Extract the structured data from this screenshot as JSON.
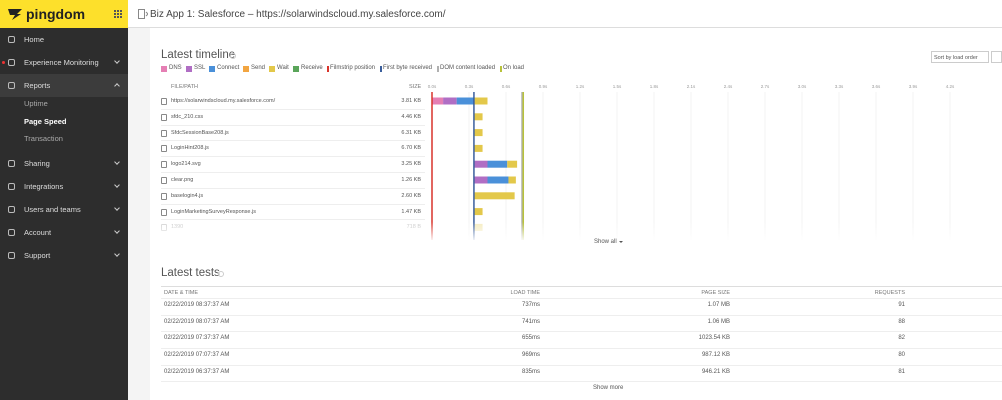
{
  "sidebar": {
    "brand": "pingdom",
    "nav": [
      {
        "label": "Home",
        "chevron": false
      },
      {
        "label": "Experience Monitoring",
        "chevron": true
      },
      {
        "label": "Reports",
        "chevron": true,
        "open": true,
        "children": [
          "Uptime",
          "Page Speed",
          "Transaction"
        ]
      },
      {
        "label": "Sharing",
        "chevron": true
      },
      {
        "label": "Integrations",
        "chevron": true
      },
      {
        "label": "Users and teams",
        "chevron": true
      },
      {
        "label": "Account",
        "chevron": true
      },
      {
        "label": "Support",
        "chevron": true
      }
    ]
  },
  "header": {
    "title": "Biz App 1: Salesforce – https://solarwindscloud.my.salesforce.com/"
  },
  "timeline": {
    "title": "Latest timeline",
    "sort": "Sort by load order",
    "legend": [
      {
        "label": "DNS",
        "color": "#e57fb4"
      },
      {
        "label": "SSL",
        "color": "#b06ec4"
      },
      {
        "label": "Connect",
        "color": "#4a90d9"
      },
      {
        "label": "Send",
        "color": "#f2a541"
      },
      {
        "label": "Wait",
        "color": "#e3c84a"
      },
      {
        "label": "Receive",
        "color": "#5aa55a"
      }
    ],
    "markers": [
      {
        "label": "Filmstrip position",
        "color": "#d9342b",
        "value": 0
      },
      {
        "label": "First byte received",
        "color": "#3a5e9c",
        "value": 0.34
      },
      {
        "label": "DOM content loaded",
        "color": "#b0b0b0",
        "value": 0.73
      },
      {
        "label": "On load",
        "color": "#b8c23a",
        "value": 0.74
      }
    ],
    "columns": [
      "FILE/PATH",
      "SIZE"
    ],
    "xlim": [
      0,
      4.2
    ],
    "ticks": [
      {
        "value": 0,
        "label": "0.0s"
      },
      {
        "value": 0.3,
        "label": "0.3s"
      },
      {
        "value": 0.6,
        "label": "0.6s"
      },
      {
        "value": 0.9,
        "label": "0.9s"
      },
      {
        "value": 1.2,
        "label": "1.2s"
      },
      {
        "value": 1.5,
        "label": "1.5s"
      },
      {
        "value": 1.8,
        "label": "1.8s"
      },
      {
        "value": 2.1,
        "label": "2.1s"
      },
      {
        "value": 2.4,
        "label": "2.4s"
      },
      {
        "value": 2.7,
        "label": "2.7s"
      },
      {
        "value": 3.0,
        "label": "3.0s"
      },
      {
        "value": 3.3,
        "label": "3.3s"
      },
      {
        "value": 3.6,
        "label": "3.6s"
      },
      {
        "value": 3.9,
        "label": "3.9s"
      },
      {
        "value": 4.2,
        "label": "4.2s"
      }
    ],
    "rows": [
      {
        "file": "https://solarwindscloud.my.salesforce.com/",
        "size": "3.81 KB",
        "segments": [
          {
            "phase": 0,
            "start": 0,
            "end": 0.09
          },
          {
            "phase": 1,
            "start": 0.09,
            "end": 0.2
          },
          {
            "phase": 2,
            "start": 0.2,
            "end": 0.34
          },
          {
            "phase": 4,
            "start": 0.34,
            "end": 0.45
          }
        ]
      },
      {
        "file": "sfdc_210.css",
        "size": "4.46 KB",
        "segments": [
          {
            "phase": 4,
            "start": 0.34,
            "end": 0.41
          }
        ]
      },
      {
        "file": "SfdcSessionBase208.js",
        "size": "6.31 KB",
        "segments": [
          {
            "phase": 4,
            "start": 0.34,
            "end": 0.41
          }
        ]
      },
      {
        "file": "LoginHint208.js",
        "size": "6.70 KB",
        "segments": [
          {
            "phase": 4,
            "start": 0.34,
            "end": 0.41
          }
        ]
      },
      {
        "file": "logo214.svg",
        "size": "3.25 KB",
        "segments": [
          {
            "phase": 1,
            "start": 0.34,
            "end": 0.45
          },
          {
            "phase": 2,
            "start": 0.45,
            "end": 0.61
          },
          {
            "phase": 4,
            "start": 0.61,
            "end": 0.69
          }
        ]
      },
      {
        "file": "clear.png",
        "size": "1.26 KB",
        "segments": [
          {
            "phase": 1,
            "start": 0.34,
            "end": 0.45
          },
          {
            "phase": 2,
            "start": 0.45,
            "end": 0.62
          },
          {
            "phase": 4,
            "start": 0.62,
            "end": 0.68
          }
        ]
      },
      {
        "file": "baselogin4.js",
        "size": "2.60 KB",
        "segments": [
          {
            "phase": 4,
            "start": 0.34,
            "end": 0.67
          }
        ]
      },
      {
        "file": "LoginMarketingSurveyResponse.js",
        "size": "1.47 KB",
        "segments": [
          {
            "phase": 4,
            "start": 0.34,
            "end": 0.41
          }
        ]
      },
      {
        "file": "1390",
        "size": "718 B",
        "segments": [
          {
            "phase": 4,
            "start": 0.34,
            "end": 0.41
          }
        ]
      }
    ],
    "show_all": "Show all"
  },
  "tests": {
    "title": "Latest tests",
    "columns": [
      "DATE & TIME",
      "LOAD TIME",
      "PAGE SIZE",
      "REQUESTS"
    ],
    "rows": [
      [
        "02/22/2019 08:37:37 AM",
        "737ms",
        "1.07 MB",
        "91"
      ],
      [
        "02/22/2019 08:07:37 AM",
        "741ms",
        "1.06 MB",
        "88"
      ],
      [
        "02/22/2019 07:37:37 AM",
        "655ms",
        "1023.54 KB",
        "82"
      ],
      [
        "02/22/2019 07:07:37 AM",
        "969ms",
        "987.12 KB",
        "80"
      ],
      [
        "02/22/2019 06:37:37 AM",
        "835ms",
        "946.21 KB",
        "81"
      ]
    ],
    "show_more": "Show more"
  }
}
